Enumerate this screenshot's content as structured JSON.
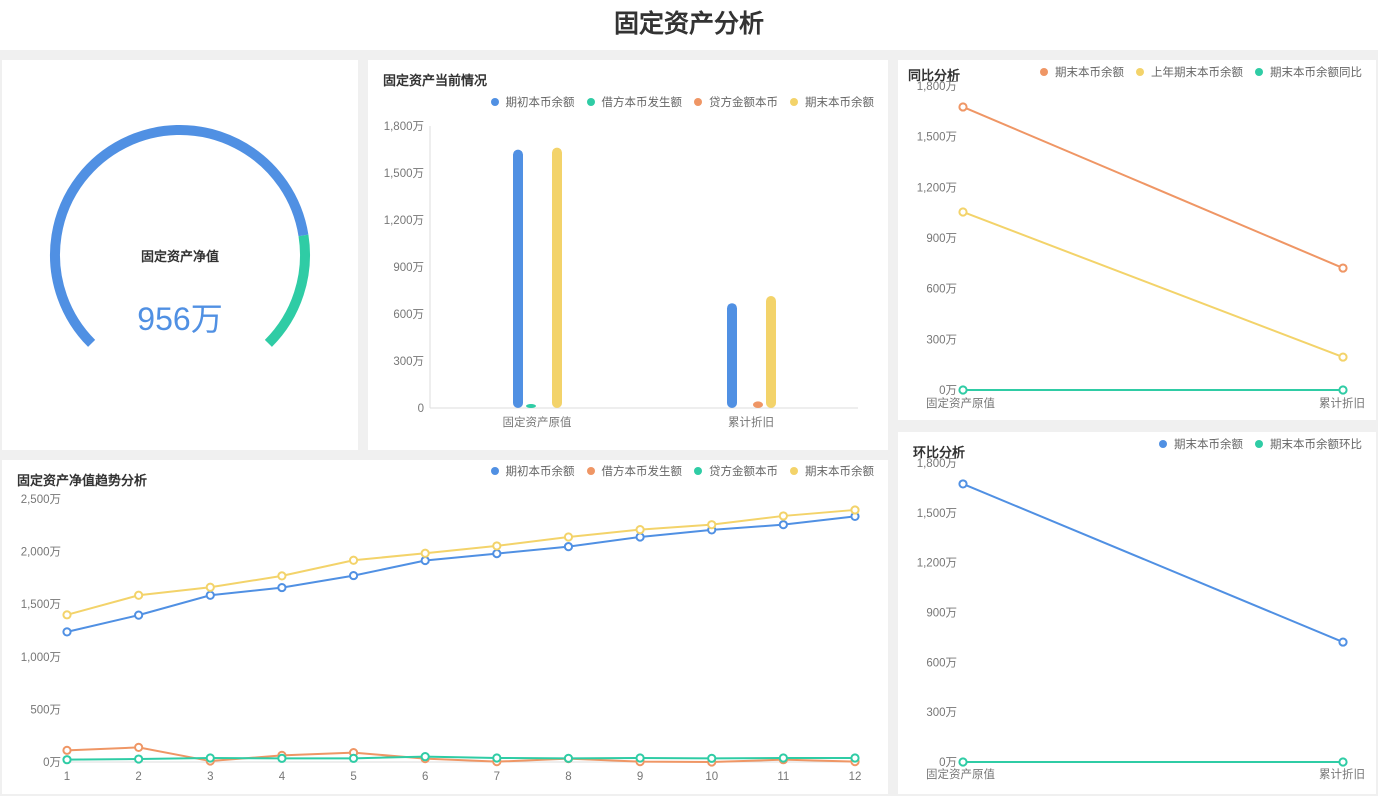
{
  "page_title": "固定资产分析",
  "colors": {
    "blue": "#5090e3",
    "green": "#2fcca5",
    "orange": "#ef9665",
    "yellow": "#f3d36a"
  },
  "gauge": {
    "label": "固定资产净值",
    "value_text": "956万",
    "fill_fraction": 0.8
  },
  "chart_data": [
    {
      "id": "current",
      "type": "bar",
      "title": "固定资产当前情况",
      "categories": [
        "固定资产原值",
        "累计折旧"
      ],
      "ylim": [
        0,
        1800
      ],
      "yticks": [
        "0",
        "300万",
        "600万",
        "900万",
        "1,200万",
        "1,500万",
        "1,800万"
      ],
      "legend_placement": "top-right",
      "series": [
        {
          "name": "期初本币余额",
          "color": "#5090e3",
          "values": [
            1649,
            669
          ]
        },
        {
          "name": "借方本币发生额",
          "color": "#2fcca5",
          "values": [
            10,
            0
          ]
        },
        {
          "name": "贷方金额本币",
          "color": "#ef9665",
          "values": [
            0,
            42
          ]
        },
        {
          "name": "期末本币余额",
          "color": "#f3d36a",
          "values": [
            1662,
            715
          ]
        }
      ]
    },
    {
      "id": "yoy",
      "type": "line",
      "title": "同比分析",
      "categories": [
        "固定资产原值",
        "累计折旧"
      ],
      "ylim": [
        0,
        1800
      ],
      "yticks": [
        "0万",
        "300万",
        "600万",
        "900万",
        "1,200万",
        "1,500万",
        "1,800万"
      ],
      "legend_placement": "top-right",
      "series": [
        {
          "name": "期末本币余额",
          "color": "#ef9665",
          "values": [
            1676,
            722
          ]
        },
        {
          "name": "上年期末本币余额",
          "color": "#f3d36a",
          "values": [
            1054,
            195
          ]
        },
        {
          "name": "期末本币余额同比",
          "color": "#2fcca5",
          "values": [
            0,
            0
          ]
        }
      ]
    },
    {
      "id": "trend",
      "type": "line",
      "title": "固定资产净值趋势分析",
      "categories": [
        "1",
        "2",
        "3",
        "4",
        "5",
        "6",
        "7",
        "8",
        "9",
        "10",
        "11",
        "12"
      ],
      "ylim": [
        0,
        2500
      ],
      "yticks": [
        "0万",
        "500万",
        "1,000万",
        "1,500万",
        "2,000万",
        "2,500万"
      ],
      "legend_placement": "top-right",
      "series": [
        {
          "name": "期初本币余额",
          "color": "#5090e3",
          "values": [
            1237,
            1396,
            1585,
            1658,
            1772,
            1915,
            1981,
            2047,
            2139,
            2206,
            2256,
            2335
          ]
        },
        {
          "name": "借方本币发生额",
          "color": "#ef9665",
          "values": [
            111,
            139,
            9,
            63,
            89,
            32,
            3,
            32,
            3,
            0,
            22,
            3
          ]
        },
        {
          "name": "贷方金额本币",
          "color": "#2fcca5",
          "values": [
            22,
            28,
            38,
            35,
            35,
            51,
            38,
            35,
            38,
            35,
            38,
            38
          ]
        },
        {
          "name": "期末本币余额",
          "color": "#f3d36a",
          "values": [
            1399,
            1585,
            1661,
            1769,
            1918,
            1984,
            2054,
            2139,
            2209,
            2256,
            2339,
            2396
          ]
        }
      ]
    },
    {
      "id": "mom",
      "type": "line",
      "title": "环比分析",
      "categories": [
        "固定资产原值",
        "累计折旧"
      ],
      "ylim": [
        0,
        1800
      ],
      "yticks": [
        "0万",
        "300万",
        "600万",
        "900万",
        "1,200万",
        "1,500万",
        "1,800万"
      ],
      "legend_placement": "top-right",
      "series": [
        {
          "name": "期末本币余额",
          "color": "#5090e3",
          "values": [
            1674,
            722
          ]
        },
        {
          "name": "期末本币余额环比",
          "color": "#2fcca5",
          "values": [
            0,
            0
          ]
        }
      ]
    }
  ]
}
